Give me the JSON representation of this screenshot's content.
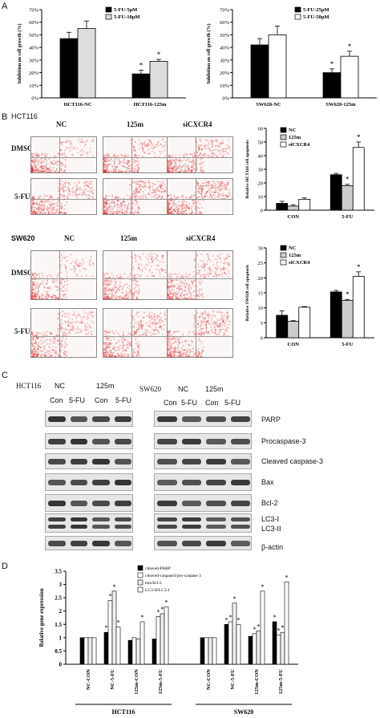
{
  "panel_letters": {
    "a": "A",
    "b": "B",
    "c": "C",
    "d": "D"
  },
  "panel_b": {
    "hct_label": "HCT116",
    "sw_label": "SW620",
    "col_labels": [
      "NC",
      "125m",
      "siCXCR4"
    ],
    "row_labels": [
      "DMSO",
      "5-FU"
    ]
  },
  "panel_c": {
    "hct_label": "HCT116",
    "sw_label": "SW620",
    "group_nc": "NC",
    "group_125m": "125m",
    "lane_con": "Con",
    "lane_5fu": "5-FU",
    "proteins": [
      "PARP",
      "Procaspase-3",
      "Cleaved caspase-3",
      "Bax",
      "Bcl-2",
      "LC3-I",
      "LC3-II",
      "β-actin"
    ]
  },
  "chart_data": [
    {
      "type": "bar",
      "id": "A-left",
      "categories": [
        "HCT116-NC",
        "HCT116-125m"
      ],
      "series": [
        {
          "name": "5-FU-5μM",
          "values": [
            47,
            19
          ]
        },
        {
          "name": "5-FU-10μM",
          "values": [
            55,
            29
          ]
        }
      ],
      "ylabel": "Inhibition on cell growth (%)",
      "ylim": [
        0,
        70
      ],
      "yticks": [
        "0%",
        "10%",
        "20%",
        "30%",
        "40%",
        "50%",
        "60%",
        "70%"
      ],
      "errors": [
        [
          5,
          3
        ],
        [
          6,
          1.5
        ]
      ],
      "stars": [
        [
          false,
          true
        ],
        [
          false,
          true
        ]
      ],
      "legend": "top-right"
    },
    {
      "type": "bar",
      "id": "A-right",
      "categories": [
        "SW620-NC",
        "SW620-125m"
      ],
      "series": [
        {
          "name": "5-FU-25μM",
          "values": [
            42,
            20
          ]
        },
        {
          "name": "5-FU-50μM",
          "values": [
            50,
            33
          ]
        }
      ],
      "ylabel": "Inhibition on cell growth (%)",
      "ylim": [
        0,
        70
      ],
      "yticks": [
        "0%",
        "10%",
        "20%",
        "30%",
        "40%",
        "50%",
        "60%",
        "70%"
      ],
      "errors": [
        [
          5,
          3
        ],
        [
          7,
          4
        ]
      ],
      "stars": [
        [
          false,
          true
        ],
        [
          false,
          true
        ]
      ],
      "legend": "top-right"
    },
    {
      "type": "bar",
      "id": "B-top",
      "categories": [
        "CON",
        "5-FU"
      ],
      "series": [
        {
          "name": "NC",
          "values": [
            5,
            26
          ]
        },
        {
          "name": "125m",
          "values": [
            3,
            18
          ]
        },
        {
          "name": "siCXCR4",
          "values": [
            8,
            46
          ]
        }
      ],
      "ylabel": "Relative HCT116 cell apoptosis",
      "ylim": [
        0,
        60
      ],
      "yticks": [
        "0",
        "10",
        "20",
        "30",
        "40",
        "50",
        "60"
      ],
      "errors": [
        [
          1.5,
          1
        ],
        [
          1,
          1
        ],
        [
          1,
          4
        ]
      ],
      "stars": [
        [
          false,
          false
        ],
        [
          false,
          true
        ],
        [
          false,
          true
        ]
      ],
      "legend": "top-left"
    },
    {
      "type": "bar",
      "id": "B-bottom",
      "categories": [
        "CON",
        "5-FU"
      ],
      "series": [
        {
          "name": "NC",
          "values": [
            7.5,
            15.3
          ]
        },
        {
          "name": "125m",
          "values": [
            5.5,
            12.5
          ]
        },
        {
          "name": "siCXCR4",
          "values": [
            10.2,
            20.5
          ]
        }
      ],
      "ylabel": "Relative SW620 cell apoptosis",
      "ylim": [
        0,
        30
      ],
      "yticks": [
        "0",
        "5",
        "10",
        "15",
        "20",
        "25",
        "30"
      ],
      "errors": [
        [
          1.5,
          0.5
        ],
        [
          0.2,
          0.3
        ],
        [
          0.2,
          1.5
        ]
      ],
      "stars": [
        [
          false,
          false
        ],
        [
          false,
          true
        ],
        [
          false,
          true
        ]
      ],
      "legend": "top-left"
    },
    {
      "type": "bar",
      "id": "D",
      "categories": [
        "NC-CON",
        "NC-5-FU",
        "125m-CON",
        "125m-5-FU",
        "NC-CON",
        "NC-5-FU",
        "125m-CON",
        "125m-5-FU"
      ],
      "groups": [
        "HCT116",
        "SW620"
      ],
      "series": [
        {
          "name": "cleaved-PARP",
          "values": [
            1,
            1.2,
            0.9,
            0.95,
            1,
            1.5,
            1.05,
            1.6
          ]
        },
        {
          "name": "cleaved-caspase3/pro-caspase 3",
          "values": [
            1,
            2.4,
            1.0,
            1.8,
            1,
            1.6,
            1.15,
            1.1
          ]
        },
        {
          "name": "bax/bcl-2",
          "values": [
            1,
            2.75,
            0.95,
            1.9,
            1,
            2.3,
            1.25,
            1.2
          ]
        },
        {
          "name": "LC3-II/LC3-I",
          "values": [
            1,
            1.4,
            1.6,
            2.15,
            1,
            1.5,
            2.75,
            3.1
          ]
        }
      ],
      "ylabel": "Relative gene expression",
      "ylim": [
        0,
        3.5
      ],
      "yticks": [
        "0",
        "0.5",
        "1",
        "1.5",
        "2",
        "2.5",
        "3",
        "3.5"
      ],
      "legend": "top-center"
    }
  ]
}
